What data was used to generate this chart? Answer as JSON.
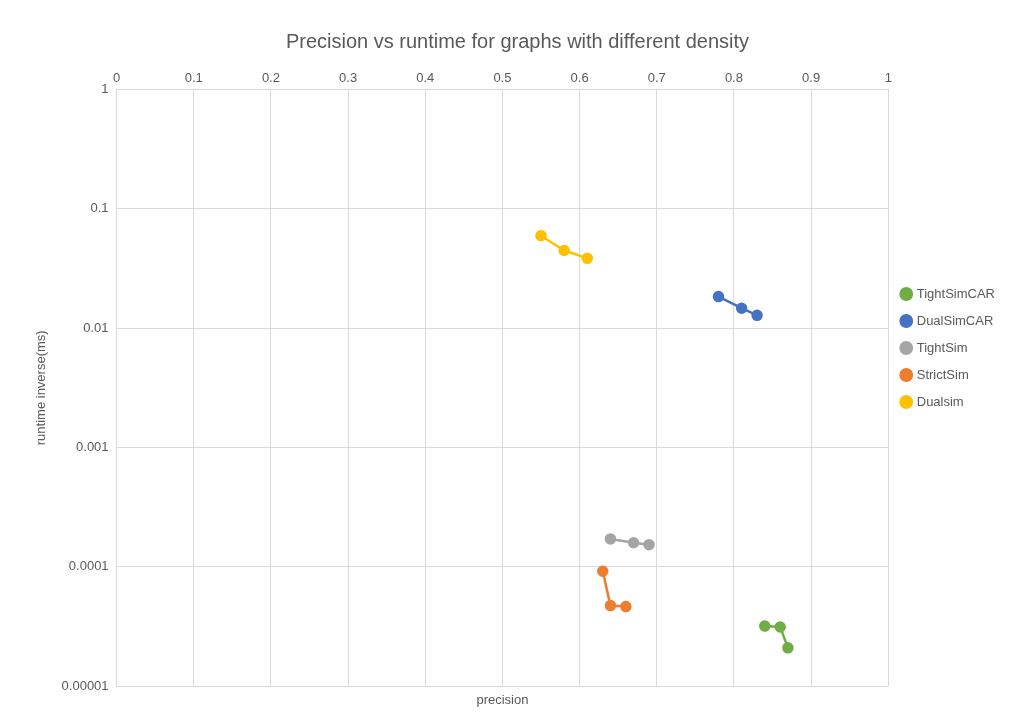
{
  "chart_data": {
    "type": "line",
    "title": "Precision vs runtime for graphs with different density",
    "xlabel": "precision",
    "ylabel": "runtime inverse(ms)",
    "xlim": [
      0,
      1
    ],
    "xticks": [
      0,
      0.1,
      0.2,
      0.3,
      0.4,
      0.5,
      0.6,
      0.7,
      0.8,
      0.9,
      1
    ],
    "ylim": [
      1e-05,
      1
    ],
    "yticks": [
      {
        "value": 1e-05,
        "label": "0.00001"
      },
      0.0001,
      0.001,
      0.01,
      0.1,
      1
    ],
    "log": "y",
    "grid": true,
    "legend": "right",
    "marker": "circle",
    "line_style": "solid",
    "series": [
      {
        "name": "TightSimCAR",
        "color": "#70ad47",
        "x": [
          0.84,
          0.86,
          0.87
        ],
        "values": [
          3.18e-05,
          3.12e-05,
          2.09e-05
        ]
      },
      {
        "name": "DualSimCAR",
        "color": "#4472c4",
        "x": [
          0.78,
          0.81,
          0.83
        ],
        "values": [
          0.0184,
          0.0147,
          0.0128
        ]
      },
      {
        "name": "TightSim",
        "color": "#a5a5a5",
        "x": [
          0.64,
          0.67,
          0.69
        ],
        "values": [
          0.000171,
          0.000159,
          0.000153
        ]
      },
      {
        "name": "StrictSim",
        "color": "#ed7d31",
        "x": [
          0.63,
          0.64,
          0.66
        ],
        "values": [
          9.17e-05,
          4.72e-05,
          4.63e-05
        ]
      },
      {
        "name": "Dualsim",
        "color": "#ffc000",
        "x": [
          0.55,
          0.58,
          0.61
        ],
        "values": [
          0.0596,
          0.0448,
          0.0385
        ]
      }
    ]
  }
}
